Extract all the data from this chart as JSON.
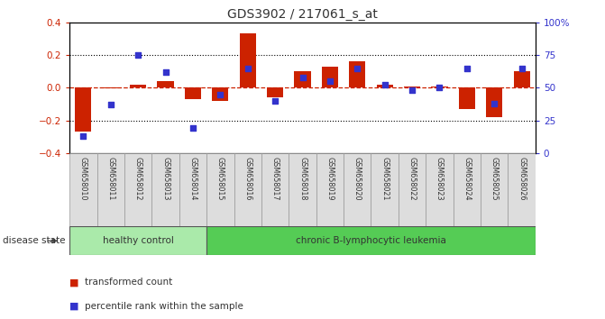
{
  "title": "GDS3902 / 217061_s_at",
  "samples": [
    "GSM658010",
    "GSM658011",
    "GSM658012",
    "GSM658013",
    "GSM658014",
    "GSM658015",
    "GSM658016",
    "GSM658017",
    "GSM658018",
    "GSM658019",
    "GSM658020",
    "GSM658021",
    "GSM658022",
    "GSM658023",
    "GSM658024",
    "GSM658025",
    "GSM658026"
  ],
  "transformed_count": [
    -0.27,
    -0.005,
    0.02,
    0.04,
    -0.07,
    -0.08,
    0.33,
    -0.06,
    0.1,
    0.13,
    0.16,
    0.02,
    0.005,
    0.005,
    -0.13,
    -0.18,
    0.1
  ],
  "percentile_rank": [
    13,
    37,
    75,
    62,
    19,
    45,
    65,
    40,
    58,
    55,
    65,
    52,
    48,
    50,
    65,
    38,
    65
  ],
  "bar_color": "#cc2200",
  "dot_color": "#3333cc",
  "ylim_left": [
    -0.4,
    0.4
  ],
  "ylim_right": [
    0,
    100
  ],
  "yticks_left": [
    -0.4,
    -0.2,
    0.0,
    0.2,
    0.4
  ],
  "yticks_right": [
    0,
    25,
    50,
    75,
    100
  ],
  "ytick_labels_right": [
    "0",
    "25",
    "50",
    "75",
    "100%"
  ],
  "hline_dotted": [
    0.2,
    -0.2
  ],
  "hline_zero_color": "#cc2200",
  "group_labels": [
    "healthy control",
    "chronic B-lymphocytic leukemia"
  ],
  "group_boundary": 5,
  "group_color_1": "#aaeaaa",
  "group_color_2": "#55cc55",
  "disease_state_label": "disease state",
  "legend_items": [
    "transformed count",
    "percentile rank within the sample"
  ],
  "bg_color": "#ffffff",
  "left_tick_color": "#cc2200",
  "right_tick_color": "#3333cc",
  "title_fontsize": 10,
  "bar_width": 0.6,
  "dot_size": 18
}
